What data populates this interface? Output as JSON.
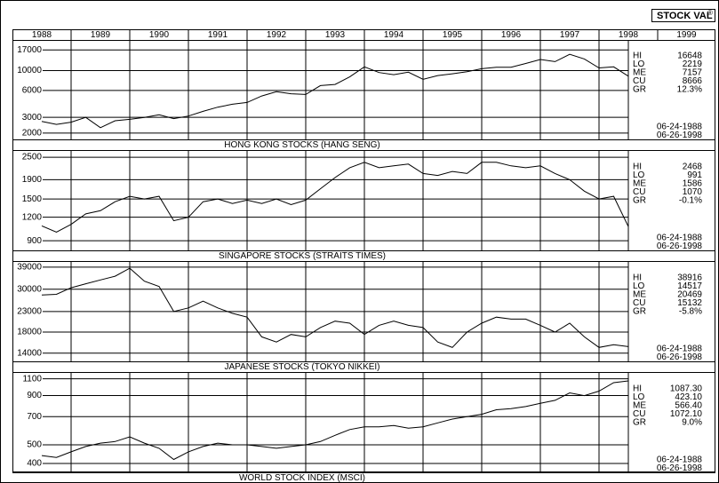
{
  "header": {
    "title": "STOCK VAL",
    "mark": "®"
  },
  "years": [
    1988,
    1989,
    1990,
    1991,
    1992,
    1993,
    1994,
    1995,
    1996,
    1997,
    1998,
    1999
  ],
  "chart_data": [
    {
      "type": "line",
      "title": "HONG KONG STOCKS (HANG SENG)",
      "color": "#000000",
      "log": true,
      "grid": true,
      "xlim": [
        1988,
        1998.5
      ],
      "ylim": [
        1700,
        22000
      ],
      "yticks": [
        2000,
        3000,
        6000,
        10000,
        17000
      ],
      "x": [
        1988.5,
        1988.75,
        1989,
        1989.25,
        1989.5,
        1989.75,
        1990,
        1990.25,
        1990.5,
        1990.75,
        1991,
        1991.25,
        1991.5,
        1991.75,
        1992,
        1992.25,
        1992.5,
        1992.75,
        1993,
        1993.25,
        1993.5,
        1993.75,
        1994,
        1994.25,
        1994.5,
        1994.75,
        1995,
        1995.25,
        1995.5,
        1995.75,
        1996,
        1996.25,
        1996.5,
        1996.75,
        1997,
        1997.25,
        1997.5,
        1997.75,
        1998,
        1998.25,
        1998.5
      ],
      "values": [
        2700,
        2500,
        2650,
        3000,
        2300,
        2750,
        2850,
        3000,
        3200,
        2900,
        3100,
        3500,
        3900,
        4200,
        4400,
        5200,
        5800,
        5500,
        5400,
        6800,
        7000,
        8500,
        11000,
        9500,
        9000,
        9600,
        8000,
        8800,
        9200,
        9700,
        10500,
        10900,
        10900,
        12000,
        13300,
        12600,
        15200,
        13500,
        10700,
        11000,
        8666
      ],
      "stats": [
        {
          "name": "HI",
          "value": 16648
        },
        {
          "name": "LO",
          "value": 2219
        },
        {
          "name": "ME",
          "value": 7157
        },
        {
          "name": "CU",
          "value": 8666
        },
        {
          "name": "GR",
          "value": 12.3,
          "label": "12.3%"
        }
      ],
      "dates": [
        "06-24-1988",
        "06-26-1998"
      ]
    },
    {
      "type": "line",
      "title": "SINGAPORE STOCKS (STRAITS TIMES)",
      "color": "#000000",
      "log": true,
      "grid": true,
      "xlim": [
        1988,
        1998.5
      ],
      "ylim": [
        800,
        2700
      ],
      "yticks": [
        900,
        1200,
        1500,
        1900,
        2500
      ],
      "x": [
        1988.5,
        1988.75,
        1989,
        1989.25,
        1989.5,
        1989.75,
        1990,
        1990.25,
        1990.5,
        1990.75,
        1991,
        1991.25,
        1991.5,
        1991.75,
        1992,
        1992.25,
        1992.5,
        1992.75,
        1993,
        1993.25,
        1993.5,
        1993.75,
        1994,
        1994.25,
        1994.5,
        1994.75,
        1995,
        1995.25,
        1995.5,
        1995.75,
        1996,
        1996.25,
        1996.5,
        1996.75,
        1997,
        1997.25,
        1997.5,
        1997.75,
        1998,
        1998.25,
        1998.5
      ],
      "values": [
        1080,
        1000,
        1100,
        1250,
        1300,
        1450,
        1550,
        1500,
        1550,
        1150,
        1200,
        1450,
        1500,
        1420,
        1480,
        1420,
        1500,
        1400,
        1480,
        1700,
        1950,
        2200,
        2350,
        2200,
        2250,
        2300,
        2050,
        2000,
        2100,
        2050,
        2350,
        2350,
        2250,
        2200,
        2250,
        2050,
        1900,
        1650,
        1500,
        1550,
        1070
      ],
      "stats": [
        {
          "name": "HI",
          "value": 2468
        },
        {
          "name": "LO",
          "value": 991
        },
        {
          "name": "ME",
          "value": 1586
        },
        {
          "name": "CU",
          "value": 1070
        },
        {
          "name": "GR",
          "value": -0.1,
          "label": "-0.1%"
        }
      ],
      "dates": [
        "06-24-1988",
        "06-26-1998"
      ]
    },
    {
      "type": "line",
      "title": "JAPANESE STOCKS (TOKYO NIKKEI)",
      "color": "#000000",
      "log": true,
      "grid": true,
      "xlim": [
        1988,
        1998.5
      ],
      "ylim": [
        12700,
        41500
      ],
      "yticks": [
        14000,
        18000,
        23000,
        30000,
        39000
      ],
      "x": [
        1988.5,
        1988.75,
        1989,
        1989.25,
        1989.5,
        1989.75,
        1990,
        1990.25,
        1990.5,
        1990.75,
        1991,
        1991.25,
        1991.5,
        1991.75,
        1992,
        1992.25,
        1992.5,
        1992.75,
        1993,
        1993.25,
        1993.5,
        1993.75,
        1994,
        1994.25,
        1994.5,
        1994.75,
        1995,
        1995.25,
        1995.5,
        1995.75,
        1996,
        1996.25,
        1996.5,
        1996.75,
        1997,
        1997.25,
        1997.5,
        1997.75,
        1998,
        1998.25,
        1998.5
      ],
      "values": [
        28000,
        28200,
        30500,
        32000,
        33500,
        35000,
        38500,
        33000,
        31000,
        23000,
        24000,
        26000,
        24000,
        22500,
        21500,
        17000,
        16000,
        17500,
        17000,
        19000,
        20500,
        20000,
        17500,
        19500,
        20500,
        19500,
        19000,
        16000,
        15000,
        18000,
        20000,
        21500,
        21000,
        21000,
        19500,
        18000,
        20000,
        17000,
        15000,
        15500,
        15132
      ],
      "stats": [
        {
          "name": "HI",
          "value": 38916
        },
        {
          "name": "LO",
          "value": 14517
        },
        {
          "name": "ME",
          "value": 20469
        },
        {
          "name": "CU",
          "value": 15132
        },
        {
          "name": "GR",
          "value": -5.8,
          "label": "-5.8%"
        }
      ],
      "dates": [
        "06-24-1988",
        "06-26-1998"
      ]
    },
    {
      "type": "line",
      "title": "WORLD STOCK INDEX (MSCI)",
      "color": "#000000",
      "log": true,
      "grid": true,
      "xlim": [
        1988,
        1998.5
      ],
      "ylim": [
        360,
        1180
      ],
      "yticks": [
        400,
        500,
        700,
        900,
        1100
      ],
      "x": [
        1988.5,
        1988.75,
        1989,
        1989.25,
        1989.5,
        1989.75,
        1990,
        1990.25,
        1990.5,
        1990.75,
        1991,
        1991.25,
        1991.5,
        1991.75,
        1992,
        1992.25,
        1992.5,
        1992.75,
        1993,
        1993.25,
        1993.5,
        1993.75,
        1994,
        1994.25,
        1994.5,
        1994.75,
        1995,
        1995.25,
        1995.5,
        1995.75,
        1996,
        1996.25,
        1996.5,
        1996.75,
        1997,
        1997.25,
        1997.5,
        1997.75,
        1998,
        1998.25,
        1998.5
      ],
      "values": [
        440,
        430,
        460,
        490,
        510,
        520,
        550,
        510,
        480,
        420,
        460,
        490,
        510,
        500,
        500,
        490,
        480,
        490,
        500,
        520,
        560,
        600,
        620,
        620,
        630,
        610,
        620,
        650,
        680,
        700,
        720,
        760,
        770,
        790,
        820,
        850,
        930,
        900,
        950,
        1050,
        1072.1
      ],
      "stats": [
        {
          "name": "HI",
          "value": 1087.3,
          "label": "1087.30"
        },
        {
          "name": "LO",
          "value": 423.1,
          "label": "423.10"
        },
        {
          "name": "ME",
          "value": 566.4,
          "label": "566.40"
        },
        {
          "name": "CU",
          "value": 1072.1,
          "label": "1072.10"
        },
        {
          "name": "GR",
          "value": 9,
          "label": "9.0%"
        }
      ],
      "dates": [
        "06-24-1988",
        "06-26-1998"
      ]
    }
  ]
}
